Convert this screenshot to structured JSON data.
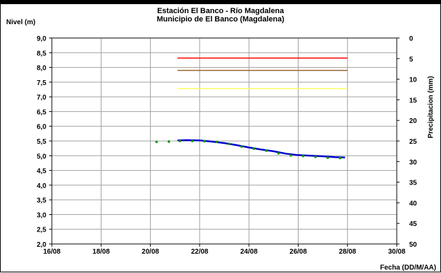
{
  "chart_data": {
    "type": "line",
    "title": "Estación El Banco - Río Magdalena",
    "subtitle": "Municipio de El Banco (Magdalena)",
    "ylabel": "Nivel (m)",
    "y2label": "Precipitacion (mm)",
    "xlabel": "Fecha (DD/M/AA)",
    "ylim": [
      2.0,
      9.0
    ],
    "y2lim": [
      0,
      50
    ],
    "y2_reversed": true,
    "xlim_days": [
      16,
      30
    ],
    "grid": true,
    "x_ticks": [
      "16/08",
      "18/08",
      "20/08",
      "22/08",
      "24/08",
      "26/08",
      "28/08",
      "30/08"
    ],
    "y_ticks": [
      "2,0",
      "2,5",
      "3,0",
      "3,5",
      "4,0",
      "4,5",
      "5,0",
      "5,5",
      "6,0",
      "6,5",
      "7,0",
      "7,5",
      "8,0",
      "8,5",
      "9,0"
    ],
    "y2_ticks": [
      "0",
      "5",
      "10",
      "15",
      "20",
      "25",
      "30",
      "35",
      "40",
      "45",
      "50"
    ],
    "thresholds": [
      {
        "color": "#ff0000",
        "y": 8.32,
        "x_start": 21.1,
        "x_end": 28.0
      },
      {
        "color": "#996633",
        "y": 7.9,
        "x_start": 21.1,
        "x_end": 28.0
      },
      {
        "color": "#ffff66",
        "y": 7.28,
        "x_start": 21.1,
        "x_end": 28.0
      }
    ],
    "series": [
      {
        "color": "#0000cc",
        "x": [
          21.1,
          21.5,
          22.0,
          22.5,
          23.0,
          23.5,
          24.0,
          24.5,
          25.0,
          25.5,
          26.0,
          26.5,
          27.0,
          27.5,
          27.9
        ],
        "y": [
          5.52,
          5.53,
          5.52,
          5.48,
          5.43,
          5.36,
          5.28,
          5.21,
          5.15,
          5.07,
          5.02,
          5.0,
          4.98,
          4.95,
          4.94
        ]
      },
      {
        "color": "#009900",
        "marker": "dot",
        "x": [
          20.25,
          20.75,
          21.2,
          21.7,
          22.2,
          22.7,
          23.2,
          23.7,
          24.2,
          24.7,
          25.2,
          25.7,
          26.2,
          26.7,
          27.2,
          27.7
        ],
        "y": [
          5.47,
          5.48,
          5.5,
          5.5,
          5.49,
          5.47,
          5.4,
          5.31,
          5.24,
          5.17,
          5.08,
          5.01,
          4.99,
          4.96,
          4.93,
          4.92
        ]
      }
    ]
  }
}
